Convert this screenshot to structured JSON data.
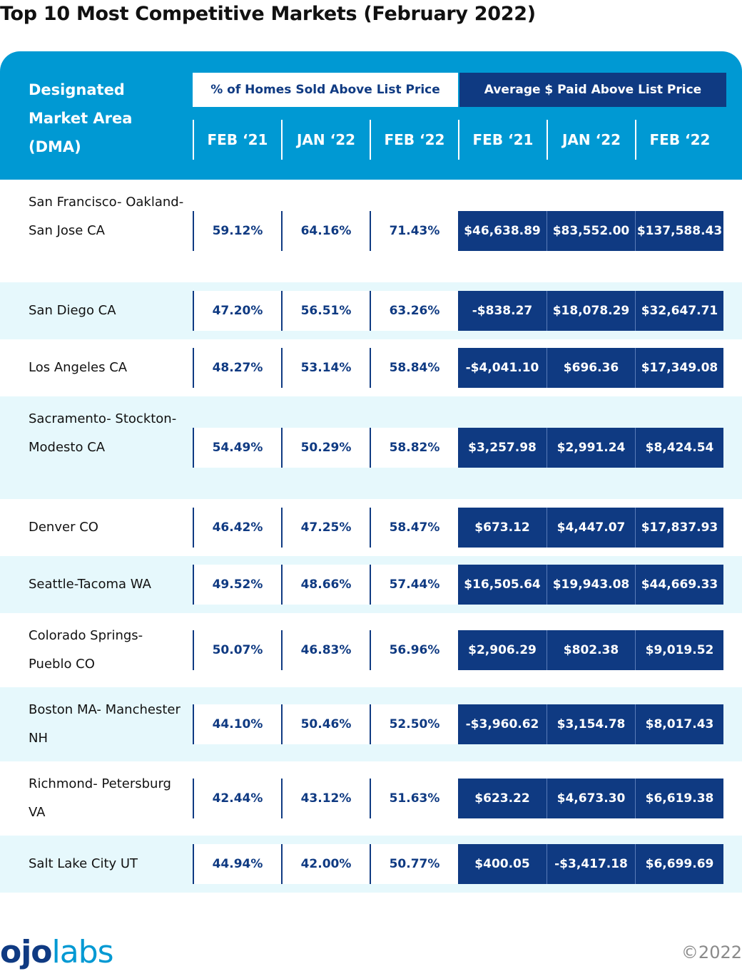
{
  "title": "Top 10 Most Competitive Markets (February 2022)",
  "header": {
    "dma_label": "Designated Market Area (DMA)",
    "pct_group": "% of Homes Sold Above List Price",
    "avg_group": "Average $ Paid Above List Price",
    "columns": [
      "FEB ‘21",
      "JAN ‘22",
      "FEB ‘22",
      "FEB ‘21",
      "JAN ‘22",
      "FEB ‘22"
    ]
  },
  "colors": {
    "brand_blue": "#0099d3",
    "navy": "#0f3a82",
    "row_alt": "#e6f8fc"
  },
  "chart_data": {
    "type": "table",
    "title": "Top 10 Most Competitive Markets (February 2022)",
    "rows": [
      {
        "market": "San Francisco- Oakland-San Jose CA",
        "pct": [
          "59.12%",
          "64.16%",
          "71.43%"
        ],
        "avg": [
          "$46,638.89",
          "$83,552.00",
          "$137,588.43"
        ]
      },
      {
        "market": "San Diego CA",
        "pct": [
          "47.20%",
          "56.51%",
          "63.26%"
        ],
        "avg": [
          "-$838.27",
          "$18,078.29",
          "$32,647.71"
        ]
      },
      {
        "market": "Los Angeles CA",
        "pct": [
          "48.27%",
          "53.14%",
          "58.84%"
        ],
        "avg": [
          "-$4,041.10",
          "$696.36",
          "$17,349.08"
        ]
      },
      {
        "market": "Sacramento- Stockton-Modesto CA",
        "pct": [
          "54.49%",
          "50.29%",
          "58.82%"
        ],
        "avg": [
          "$3,257.98",
          "$2,991.24",
          "$8,424.54"
        ]
      },
      {
        "market": "Denver CO",
        "pct": [
          "46.42%",
          "47.25%",
          "58.47%"
        ],
        "avg": [
          "$673.12",
          "$4,447.07",
          "$17,837.93"
        ]
      },
      {
        "market": "Seattle-Tacoma WA",
        "pct": [
          "49.52%",
          "48.66%",
          "57.44%"
        ],
        "avg": [
          "$16,505.64",
          "$19,943.08",
          "$44,669.33"
        ]
      },
      {
        "market": "Colorado Springs- Pueblo CO",
        "pct": [
          "50.07%",
          "46.83%",
          "56.96%"
        ],
        "avg": [
          "$2,906.29",
          "$802.38",
          "$9,019.52"
        ]
      },
      {
        "market": "Boston MA- Manchester NH",
        "pct": [
          "44.10%",
          "50.46%",
          "52.50%"
        ],
        "avg": [
          "-$3,960.62",
          "$3,154.78",
          "$8,017.43"
        ]
      },
      {
        "market": "Richmond- Petersburg VA",
        "pct": [
          "42.44%",
          "43.12%",
          "51.63%"
        ],
        "avg": [
          "$623.22",
          "$4,673.30",
          "$6,619.38"
        ]
      },
      {
        "market": "Salt Lake City UT",
        "pct": [
          "44.94%",
          "42.00%",
          "50.77%"
        ],
        "avg": [
          "$400.05",
          "-$3,417.18",
          "$6,699.69"
        ]
      }
    ]
  },
  "footer": {
    "logo_a": "ojo",
    "logo_b": "labs",
    "copyright": "©2022"
  }
}
